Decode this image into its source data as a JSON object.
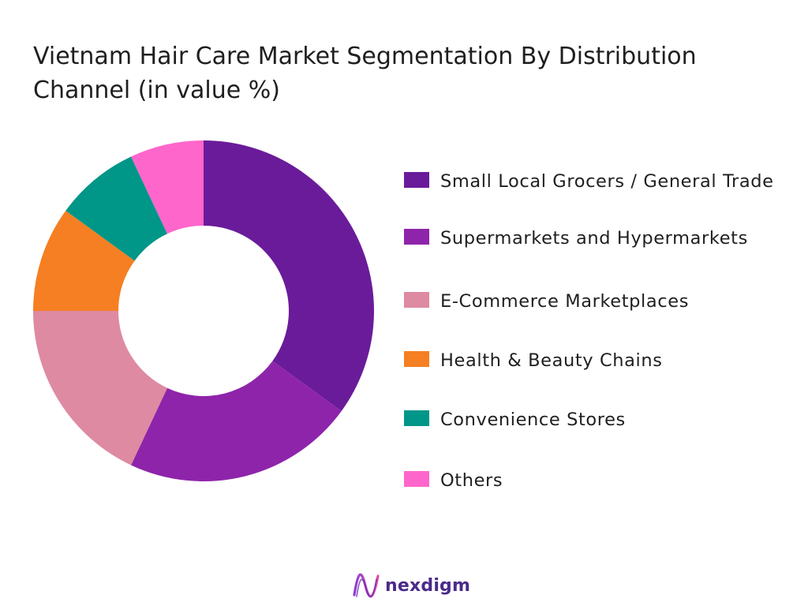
{
  "title": "Vietnam Hair Care Market Segmentation By Distribution Channel (in value %)",
  "brand": {
    "name": "nexdigm",
    "logo_icon": "nexdigm-wave-logo-icon",
    "color": "#4b2a8a"
  },
  "chart_data": {
    "type": "pie",
    "subtype": "donut",
    "title": "Vietnam Hair Care Market Segmentation By Distribution Channel (in value %)",
    "legend_position": "right",
    "categories": [
      "Small Local Grocers / General Trade",
      "Supermarkets and Hypermarkets",
      "E-Commerce Marketplaces",
      "Health & Beauty Chains",
      "Convenience Stores",
      "Others"
    ],
    "values": [
      35,
      22,
      18,
      10,
      8,
      7
    ],
    "colors": [
      "#6a1b9a",
      "#8e24aa",
      "#de8aa2",
      "#f57f22",
      "#009688",
      "#ff66cc"
    ]
  }
}
